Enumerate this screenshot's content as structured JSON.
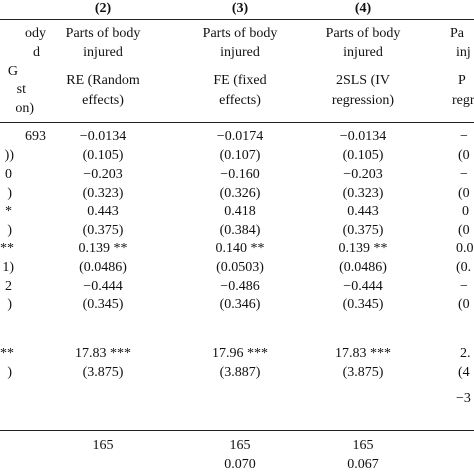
{
  "table": {
    "column_numbers": [
      "(2)",
      "(3)",
      "(4)"
    ],
    "col1_header_lines": [
      "ody",
      "d",
      "G",
      "st",
      "on)"
    ],
    "col5_header_lines": [
      "Pa",
      "inj",
      "P",
      "regr"
    ],
    "headers": [
      {
        "dep": [
          "Parts of body",
          "injured"
        ],
        "model": [
          "RE (Random",
          "effects)"
        ]
      },
      {
        "dep": [
          "Parts of body",
          "injured"
        ],
        "model": [
          "FE (fixed",
          "effects)"
        ]
      },
      {
        "dep": [
          "Parts of body",
          "injured"
        ],
        "model": [
          "2SLS (IV",
          "regression)"
        ]
      }
    ],
    "rows": [
      {
        "c1": "693",
        "c2": "−0.0134",
        "c3": "−0.0174",
        "c4": "−0.0134",
        "c5": "−"
      },
      {
        "c1": "))",
        "c2": "(0.105)",
        "c3": "(0.107)",
        "c4": "(0.105)",
        "c5": "(0"
      },
      {
        "c1": "0",
        "c2": "−0.203",
        "c3": "−0.160",
        "c4": "−0.203",
        "c5": "−"
      },
      {
        "c1": ")",
        "c2": "(0.323)",
        "c3": "(0.326)",
        "c4": "(0.323)",
        "c5": "(0"
      },
      {
        "c1": "*",
        "c2": "0.443",
        "c3": "0.418",
        "c4": "0.443",
        "c5": "0"
      },
      {
        "c1": ")",
        "c2": "(0.375)",
        "c3": "(0.384)",
        "c4": "(0.375)",
        "c5": "(0"
      },
      {
        "c1": "**",
        "c2": "0.139 **",
        "c3": "0.140 **",
        "c4": "0.139 **",
        "c5": "0.0"
      },
      {
        "c1": "1)",
        "c2": "(0.0486)",
        "c3": "(0.0503)",
        "c4": "(0.0486)",
        "c5": "(0."
      },
      {
        "c1": "2",
        "c2": "−0.444",
        "c3": "−0.486",
        "c4": "−0.444",
        "c5": "−"
      },
      {
        "c1": ")",
        "c2": "(0.345)",
        "c3": "(0.346)",
        "c4": "(0.345)",
        "c5": "(0"
      },
      {
        "c1": "**",
        "c2": "17.83 ***",
        "c3": "17.96 ***",
        "c4": "17.83 ***",
        "c5": "2."
      },
      {
        "c1": ")",
        "c2": "(3.875)",
        "c3": "(3.887)",
        "c4": "(3.875)",
        "c5": "(4"
      },
      {
        "c1": "",
        "c2": "",
        "c3": "",
        "c4": "",
        "c5": "−3"
      },
      {
        "c1": "",
        "c2": "165",
        "c3": "165",
        "c4": "165",
        "c5": ""
      },
      {
        "c1": "",
        "c2": "",
        "c3": "0.070",
        "c4": "0.067",
        "c5": ""
      }
    ]
  }
}
